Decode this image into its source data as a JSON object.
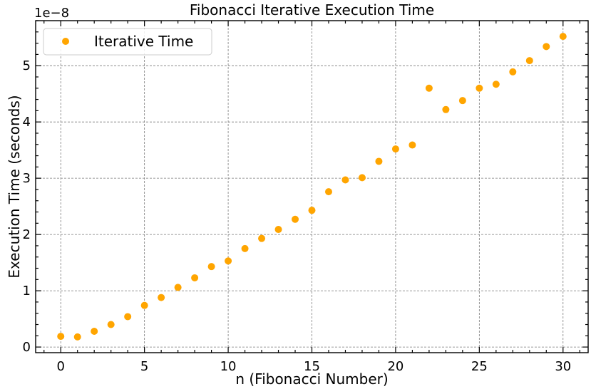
{
  "chart_data": {
    "type": "scatter",
    "title": "Fibonacci Iterative Execution Time",
    "xlabel": "n (Fibonacci Number)",
    "ylabel": "Execution Time (seconds)",
    "y_scale_label": "1e−8",
    "xlim": [
      -1.5,
      31.5
    ],
    "ylim": [
      -0.1,
      5.8
    ],
    "x_ticks": [
      0,
      5,
      10,
      15,
      20,
      25,
      30
    ],
    "y_ticks": [
      0,
      1,
      2,
      3,
      4,
      5
    ],
    "x_minor_step": 1,
    "y_minor_step": 0.2,
    "grid": true,
    "legend_position": "top-left",
    "series": [
      {
        "name": "Iterative Time",
        "color": "#ffa500",
        "x": [
          0,
          1,
          2,
          3,
          4,
          5,
          6,
          7,
          8,
          9,
          10,
          11,
          12,
          13,
          14,
          15,
          16,
          17,
          18,
          19,
          20,
          21,
          22,
          23,
          24,
          25,
          26,
          27,
          28,
          29,
          30
        ],
        "y": [
          0.19,
          0.18,
          0.28,
          0.4,
          0.54,
          0.74,
          0.88,
          1.06,
          1.23,
          1.43,
          1.53,
          1.75,
          1.93,
          2.09,
          2.27,
          2.43,
          2.76,
          2.97,
          3.01,
          3.3,
          3.52,
          3.59,
          4.6,
          4.22,
          4.38,
          4.6,
          4.67,
          4.89,
          5.09,
          5.34,
          5.52
        ]
      }
    ]
  }
}
